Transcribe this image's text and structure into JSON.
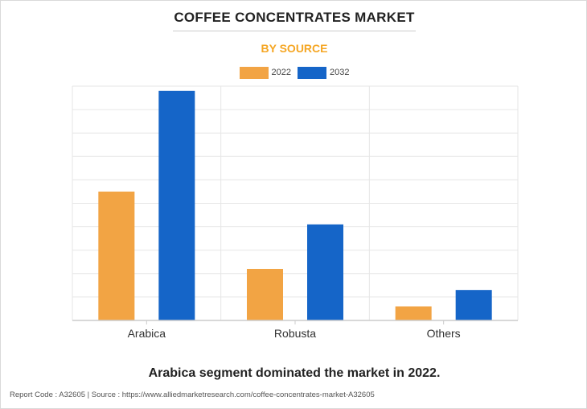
{
  "title": "COFFEE CONCENTRATES MARKET",
  "subtitle": "BY SOURCE",
  "caption": "Arabica segment dominated the market in 2022.",
  "footer": "Report Code : A32605  |  Source : https://www.alliedmarketresearch.com/coffee-concentrates-market-A32605",
  "colors": {
    "subtitle": "#f5a623",
    "series_2022": "#f2a444",
    "series_2032": "#1565c8",
    "grid": "#e6e6e6",
    "axis": "#cccccc"
  },
  "chart_data": {
    "type": "bar",
    "categories": [
      "Arabica",
      "Robusta",
      "Others"
    ],
    "series": [
      {
        "name": "2022",
        "values": [
          5.5,
          2.2,
          0.6
        ]
      },
      {
        "name": "2032",
        "values": [
          9.8,
          4.1,
          1.3
        ]
      }
    ],
    "ylim": [
      0,
      10
    ],
    "y_tick_step": 1,
    "y_tick_labels_shown": false,
    "grid": true,
    "legend": "top-center",
    "xlabel": "",
    "ylabel": ""
  }
}
